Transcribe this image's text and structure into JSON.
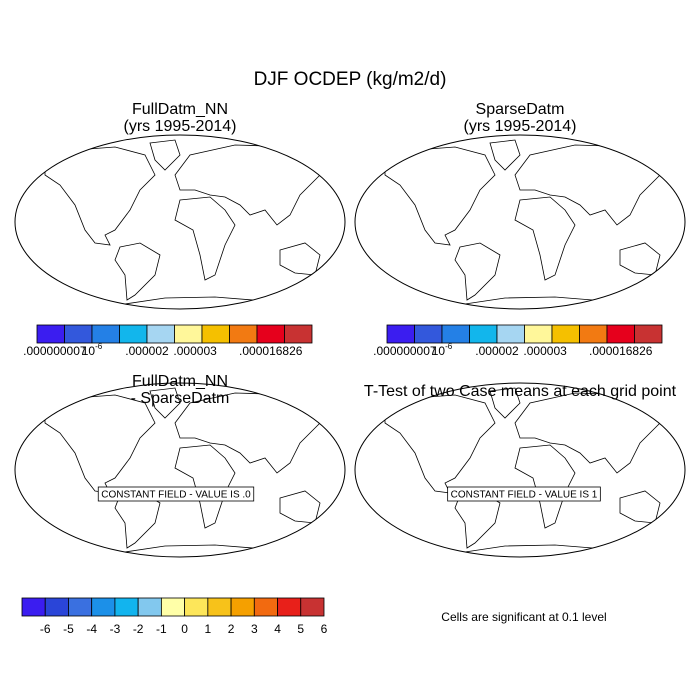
{
  "title": "DJF OCDEP (kg/m2/d)",
  "panels": [
    {
      "title": [
        "FullDatm_NN",
        "(yrs 1995-2014)"
      ]
    },
    {
      "title": [
        "SparseDatm",
        "(yrs 1995-2014)"
      ]
    },
    {
      "title": [
        "FullDatm_NN",
        "- SparseDatm"
      ],
      "note": "CONSTANT FIELD - VALUE IS .0"
    },
    {
      "title": [
        "T-Test of two Case means at each grid point"
      ],
      "note": "CONSTANT FIELD - VALUE IS 1"
    }
  ],
  "colorbars": [
    {
      "colors": [
        "#3b1df0",
        "#3358dc",
        "#2480e6",
        "#12b6ec",
        "#a6d6f2",
        "#fff79a",
        "#f5c000",
        "#f27a12",
        "#e6001c",
        "#c83232"
      ],
      "labels": [
        ".000000007",
        {
          "base": "10",
          "exponent": "-6"
        },
        ".000002",
        ".000003",
        ".000016826"
      ]
    },
    {
      "colors": [
        "#3b1df0",
        "#2a45d8",
        "#3a70e0",
        "#1c90e8",
        "#12b4ee",
        "#82c8ee",
        "#ffffa8",
        "#fde65a",
        "#f7c21a",
        "#f5a000",
        "#f26a10",
        "#e8201a",
        "#c83232"
      ],
      "labels": [
        "-6",
        "-5",
        "-4",
        "-3",
        "-2",
        "-1",
        "0",
        "1",
        "2",
        "3",
        "4",
        "5",
        "6"
      ]
    }
  ],
  "significance_note": "Cells are significant at 0.1 level"
}
